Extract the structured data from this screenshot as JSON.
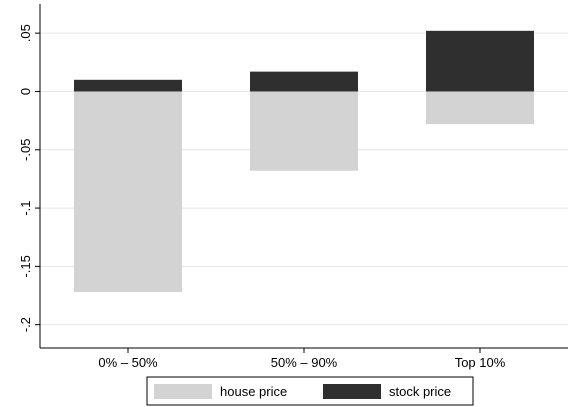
{
  "chart_data": {
    "type": "bar",
    "stacked": true,
    "categories": [
      "0% – 50%",
      "50% – 90%",
      "Top 10%"
    ],
    "series": [
      {
        "name": "house price",
        "values": [
          -0.172,
          -0.068,
          -0.028
        ],
        "color": "#d3d3d3"
      },
      {
        "name": "stock price",
        "values": [
          0.01,
          0.017,
          0.052
        ],
        "color": "#2f2f2f"
      }
    ],
    "ylim": [
      -0.22,
      0.075
    ],
    "yticks": [
      {
        "value": 0.05,
        "label": ".05"
      },
      {
        "value": 0,
        "label": "0"
      },
      {
        "value": -0.05,
        "label": "-.05"
      },
      {
        "value": -0.1,
        "label": "-.1"
      },
      {
        "value": -0.15,
        "label": "-.15"
      },
      {
        "value": -0.2,
        "label": "-.2"
      }
    ],
    "grid": true,
    "legend_position": "bottom",
    "title": "",
    "xlabel": "",
    "ylabel": ""
  }
}
